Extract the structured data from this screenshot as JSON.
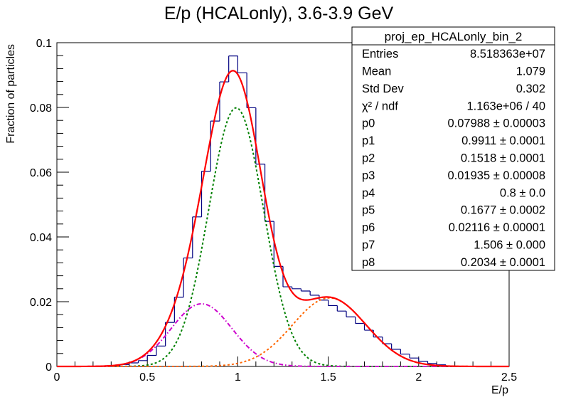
{
  "chart_data": {
    "type": "histogram-with-fit",
    "title": "E/p (HCALonly), 3.6-3.9 GeV",
    "xlabel": "E/p",
    "ylabel": "Fraction of particles",
    "xlim": [
      0,
      2.5
    ],
    "ylim": [
      0,
      0.1
    ],
    "x_ticks": [
      {
        "value": 0,
        "label": "0"
      },
      {
        "value": 0.5,
        "label": "0.5"
      },
      {
        "value": 1,
        "label": "1"
      },
      {
        "value": 1.5,
        "label": "1.5"
      },
      {
        "value": 2,
        "label": "2"
      },
      {
        "value": 2.5,
        "label": "2.5"
      }
    ],
    "y_ticks": [
      {
        "value": 0,
        "label": "0"
      },
      {
        "value": 0.02,
        "label": "0.02"
      },
      {
        "value": 0.04,
        "label": "0.04"
      },
      {
        "value": 0.06,
        "label": "0.06"
      },
      {
        "value": 0.08,
        "label": "0.08"
      },
      {
        "value": 0.1,
        "label": "0.1"
      }
    ],
    "histogram": {
      "bin_width": 0.05,
      "bin_edges_start": 0,
      "values": [
        0,
        0,
        0,
        0,
        0,
        0,
        0.0003,
        0.0006,
        0.0011,
        0.0018,
        0.0034,
        0.0063,
        0.0136,
        0.0214,
        0.0335,
        0.0462,
        0.0603,
        0.0758,
        0.0879,
        0.0959,
        0.0907,
        0.0799,
        0.0625,
        0.0448,
        0.0309,
        0.0246,
        0.024,
        0.0233,
        0.022,
        0.0205,
        0.0188,
        0.0171,
        0.0153,
        0.0133,
        0.0112,
        0.0091,
        0.007,
        0.0053,
        0.0038,
        0.0026,
        0.0016,
        0.0009,
        0.0005,
        0.0002,
        0,
        0,
        0,
        0,
        0,
        0
      ],
      "color": "#000080"
    },
    "fit_components": [
      {
        "shape": "gaussian",
        "amplitude": 0.07988,
        "mean": 0.9911,
        "sigma": 0.1518,
        "color": "#008000",
        "style": "dotted"
      },
      {
        "shape": "gaussian",
        "amplitude": 0.01935,
        "mean": 0.8,
        "sigma": 0.1677,
        "color": "#cc00cc",
        "style": "dash-dot"
      },
      {
        "shape": "gaussian",
        "amplitude": 0.02116,
        "mean": 1.506,
        "sigma": 0.2034,
        "color": "#ff6600",
        "style": "dotted"
      }
    ],
    "total_fit": {
      "color": "#ff0000",
      "style": "solid"
    },
    "stats_box": {
      "title": "proj_ep_HCALonly_bin_2",
      "placement": "top-right",
      "rows": [
        {
          "label": "Entries",
          "value": "8.518363e+07"
        },
        {
          "label": "Mean",
          "value": "1.079"
        },
        {
          "label": "Std Dev",
          "value": "0.302"
        },
        {
          "label": "χ² / ndf",
          "value": "1.163e+06 / 40"
        },
        {
          "label": "p0",
          "value": "0.07988 ± 0.00003"
        },
        {
          "label": "p1",
          "value": "0.9911 ± 0.0001"
        },
        {
          "label": "p2",
          "value": "0.1518 ± 0.0001"
        },
        {
          "label": "p3",
          "value": "0.01935 ± 0.00008"
        },
        {
          "label": "p4",
          "value": "0.8 ± 0.0"
        },
        {
          "label": "p5",
          "value": "0.1677 ± 0.0002"
        },
        {
          "label": "p6",
          "value": "0.02116 ± 0.00001"
        },
        {
          "label": "p7",
          "value": "1.506 ± 0.000"
        },
        {
          "label": "p8",
          "value": "0.2034 ± 0.0001"
        }
      ]
    }
  }
}
